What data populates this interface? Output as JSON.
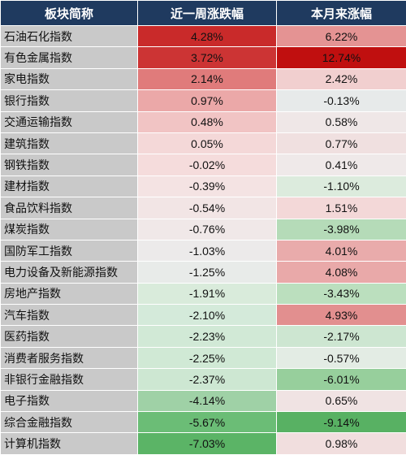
{
  "headers": {
    "name": "板块简称",
    "week": "近一周涨跌幅",
    "month": "本月来涨幅"
  },
  "rows": [
    {
      "name": "石油石化指数",
      "week": "4.28%",
      "month": "6.22%",
      "week_color": "#c92a2a",
      "month_color": "#e49393"
    },
    {
      "name": "有色金属指数",
      "week": "3.72%",
      "month": "12.74%",
      "week_color": "#cc3434",
      "month_color": "#c00f0f"
    },
    {
      "name": "家电指数",
      "week": "2.14%",
      "month": "2.42%",
      "week_color": "#e07b7b",
      "month_color": "#f1cfcf"
    },
    {
      "name": "银行指数",
      "week": "0.97%",
      "month": "-0.13%",
      "week_color": "#eba8a8",
      "month_color": "#e7eaea"
    },
    {
      "name": "交通运输指数",
      "week": "0.48%",
      "month": "0.58%",
      "week_color": "#f1c4c4",
      "month_color": "#efe7e7"
    },
    {
      "name": "建筑指数",
      "week": "0.05%",
      "month": "0.77%",
      "week_color": "#f4d8d8",
      "month_color": "#f0e0e0"
    },
    {
      "name": "钢铁指数",
      "week": "-0.02%",
      "month": "0.41%",
      "week_color": "#f5dcdc",
      "month_color": "#efe9e9"
    },
    {
      "name": "建材指数",
      "week": "-0.39%",
      "month": "-1.10%",
      "week_color": "#f4e3e3",
      "month_color": "#dcebdd"
    },
    {
      "name": "食品饮料指数",
      "week": "-0.54%",
      "month": "1.51%",
      "week_color": "#f2e5e5",
      "month_color": "#f3d8d8"
    },
    {
      "name": "煤炭指数",
      "week": "-0.76%",
      "month": "-3.98%",
      "week_color": "#f0e8e8",
      "month_color": "#b5dbb8"
    },
    {
      "name": "国防军工指数",
      "week": "-1.03%",
      "month": "4.01%",
      "week_color": "#eceaea",
      "month_color": "#e9abab"
    },
    {
      "name": "电力设备及新能源指数",
      "week": "-1.25%",
      "month": "4.08%",
      "week_color": "#e8ebe9",
      "month_color": "#e9a9a9"
    },
    {
      "name": "房地产指数",
      "week": "-1.91%",
      "month": "-3.43%",
      "week_color": "#d9ebdb",
      "month_color": "#bbdfbe"
    },
    {
      "name": "汽车指数",
      "week": "-2.10%",
      "month": "4.93%",
      "week_color": "#d4eada",
      "month_color": "#e28f8f"
    },
    {
      "name": "医药指数",
      "week": "-2.23%",
      "month": "-2.17%",
      "week_color": "#d1e9d6",
      "month_color": "#cde6d1"
    },
    {
      "name": "消费者服务指数",
      "week": "-2.25%",
      "month": "-0.57%",
      "week_color": "#d0e9d5",
      "month_color": "#e3ece4"
    },
    {
      "name": "非银行金融指数",
      "week": "-2.37%",
      "month": "-6.01%",
      "week_color": "#cde7d2",
      "month_color": "#97cf9c"
    },
    {
      "name": "电子指数",
      "week": "-4.14%",
      "month": "0.65%",
      "week_color": "#9fd1a6",
      "month_color": "#f0e3e3"
    },
    {
      "name": "综合金融指数",
      "week": "-5.67%",
      "month": "-9.14%",
      "week_color": "#6bbd76",
      "month_color": "#58b163"
    },
    {
      "name": "计算机指数",
      "week": "-7.03%",
      "month": "0.98%",
      "week_color": "#5bb466",
      "month_color": "#f1dede"
    }
  ]
}
